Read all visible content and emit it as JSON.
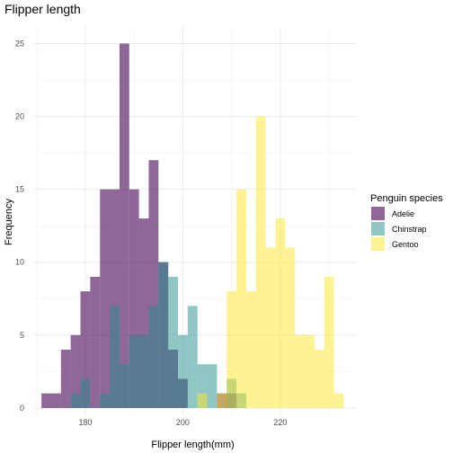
{
  "chart_data": {
    "type": "histogram",
    "title": "Flipper length",
    "xlabel": "Flipper length(mm)",
    "ylabel": "Frequency",
    "xlim": [
      169.5,
      235.5
    ],
    "ylim": [
      -0.5,
      26.2
    ],
    "x_ticks": [
      180,
      200,
      220
    ],
    "y_ticks": [
      0,
      5,
      10,
      15,
      20,
      25
    ],
    "grid": true,
    "bin_width": 2,
    "legend": {
      "title": "Penguin species",
      "position": "right",
      "entries": [
        "Adelie",
        "Chinstrap",
        "Gentoo"
      ]
    },
    "series": [
      {
        "name": "Adelie",
        "color": "#440154",
        "opacity": 0.6,
        "bins": [
          {
            "x": 172,
            "count": 1
          },
          {
            "x": 174,
            "count": 1
          },
          {
            "x": 176,
            "count": 4
          },
          {
            "x": 178,
            "count": 5
          },
          {
            "x": 180,
            "count": 8
          },
          {
            "x": 182,
            "count": 9
          },
          {
            "x": 184,
            "count": 15
          },
          {
            "x": 186,
            "count": 15
          },
          {
            "x": 188,
            "count": 25
          },
          {
            "x": 190,
            "count": 15
          },
          {
            "x": 192,
            "count": 13
          },
          {
            "x": 194,
            "count": 17
          },
          {
            "x": 196,
            "count": 10
          },
          {
            "x": 198,
            "count": 4
          },
          {
            "x": 200,
            "count": 2
          },
          {
            "x": 208,
            "count": 1
          },
          {
            "x": 210,
            "count": 1
          }
        ]
      },
      {
        "name": "Chinstrap",
        "color": "#21908C",
        "opacity": 0.5,
        "bins": [
          {
            "x": 178,
            "count": 1
          },
          {
            "x": 180,
            "count": 2
          },
          {
            "x": 184,
            "count": 1
          },
          {
            "x": 186,
            "count": 7
          },
          {
            "x": 188,
            "count": 3
          },
          {
            "x": 190,
            "count": 5
          },
          {
            "x": 192,
            "count": 5
          },
          {
            "x": 194,
            "count": 7
          },
          {
            "x": 196,
            "count": 10
          },
          {
            "x": 198,
            "count": 9
          },
          {
            "x": 200,
            "count": 5
          },
          {
            "x": 202,
            "count": 7
          },
          {
            "x": 204,
            "count": 3
          },
          {
            "x": 206,
            "count": 3
          },
          {
            "x": 210,
            "count": 2
          },
          {
            "x": 212,
            "count": 1
          }
        ]
      },
      {
        "name": "Gentoo",
        "color": "#FDE725",
        "opacity": 0.5,
        "bins": [
          {
            "x": 204,
            "count": 1
          },
          {
            "x": 208,
            "count": 1
          },
          {
            "x": 210,
            "count": 8
          },
          {
            "x": 212,
            "count": 15
          },
          {
            "x": 214,
            "count": 8
          },
          {
            "x": 216,
            "count": 20
          },
          {
            "x": 218,
            "count": 11
          },
          {
            "x": 220,
            "count": 13
          },
          {
            "x": 222,
            "count": 11
          },
          {
            "x": 224,
            "count": 5
          },
          {
            "x": 226,
            "count": 5
          },
          {
            "x": 228,
            "count": 4
          },
          {
            "x": 230,
            "count": 9
          },
          {
            "x": 232,
            "count": 1
          }
        ]
      }
    ]
  }
}
